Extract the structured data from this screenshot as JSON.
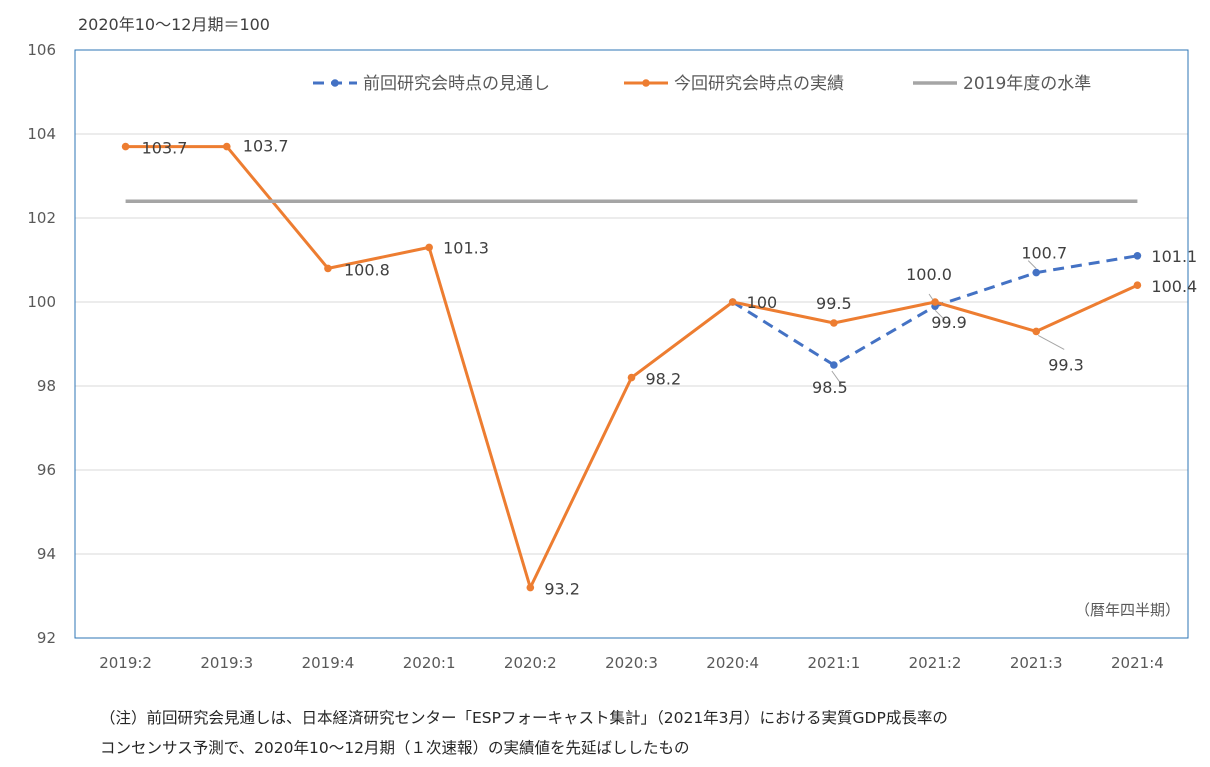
{
  "chart_data": {
    "type": "line",
    "unit_label": "2020年10～12月期＝100",
    "period_label": "（暦年四半期）",
    "categories": [
      "2019:2",
      "2019:3",
      "2019:4",
      "2020:1",
      "2020:2",
      "2020:3",
      "2020:4",
      "2021:1",
      "2021:2",
      "2021:3",
      "2021:4"
    ],
    "ylim": [
      92,
      106
    ],
    "yticks": [
      92,
      94,
      96,
      98,
      100,
      102,
      104,
      106
    ],
    "legend_position": "top",
    "grid": true,
    "series": [
      {
        "name": "前回研究会時点の見通し",
        "color": "#4472C4",
        "style": "dashed",
        "values": [
          null,
          null,
          null,
          null,
          null,
          null,
          100,
          98.5,
          99.9,
          100.7,
          101.1
        ],
        "labels": [
          null,
          null,
          null,
          null,
          null,
          null,
          null,
          "98.5",
          "99.9",
          "100.7",
          "101.1"
        ]
      },
      {
        "name": "今回研究会時点の実績",
        "color": "#ED7D31",
        "style": "solid",
        "values": [
          103.7,
          103.7,
          100.8,
          101.3,
          93.2,
          98.2,
          100,
          99.5,
          100.0,
          99.3,
          100.4
        ],
        "labels": [
          "103.7",
          "103.7",
          "100.8",
          "101.3",
          "93.2",
          "98.2",
          "100",
          "99.5",
          "100.0",
          "99.3",
          "100.4"
        ]
      },
      {
        "name": "2019年度の水準",
        "color": "#A5A5A5",
        "style": "flat",
        "values": [
          102.4,
          102.4,
          102.4,
          102.4,
          102.4,
          102.4,
          102.4,
          102.4,
          102.4,
          102.4,
          102.4
        ]
      }
    ]
  },
  "notes": {
    "line1": "（注）前回研究会見通しは、日本経済研究センター「ESPフォーキャスト集計」（2021年3月）における実質GDP成長率の",
    "line2": "コンセンサス予測で、2020年10～12月期（１次速報）の実績値を先延ばししたもの"
  }
}
